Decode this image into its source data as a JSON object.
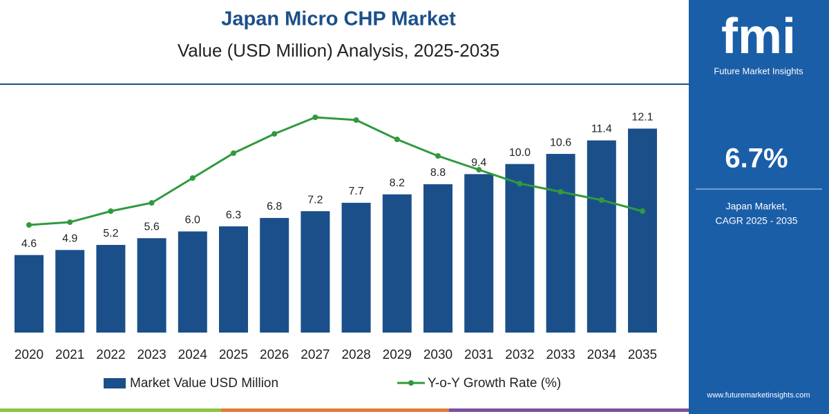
{
  "chart_data": {
    "type": "bar",
    "title": "Japan Micro CHP Market",
    "subtitle": "Value (USD Million) Analysis, 2025-2035",
    "categories": [
      "2020",
      "2021",
      "2022",
      "2023",
      "2024",
      "2025",
      "2026",
      "2027",
      "2028",
      "2029",
      "2030",
      "2031",
      "2032",
      "2033",
      "2034",
      "2035"
    ],
    "series": [
      {
        "name": "Market Value USD Million",
        "type": "bar",
        "color": "#1b4f8a",
        "values": [
          4.6,
          4.9,
          5.2,
          5.6,
          6.0,
          6.3,
          6.8,
          7.2,
          7.7,
          8.2,
          8.8,
          9.4,
          10.0,
          10.6,
          11.4,
          12.1
        ],
        "value_labels": [
          "4.6",
          "4.9",
          "5.2",
          "5.6",
          "6.0",
          "6.3",
          "6.8",
          "7.2",
          "7.7",
          "8.2",
          "8.8",
          "9.4",
          "10.0",
          "10.6",
          "11.4",
          "12.1"
        ]
      },
      {
        "name": "Y-o-Y Growth Rate (%)",
        "type": "line",
        "axis": "y2",
        "color": "#2f9a3c",
        "values": [
          3.9,
          4.0,
          4.4,
          4.7,
          5.6,
          6.5,
          7.2,
          7.8,
          7.7,
          7.0,
          6.4,
          5.9,
          5.4,
          5.1,
          4.8,
          4.4
        ]
      }
    ],
    "ylim": [
      0,
      15.8
    ],
    "y2lim": [
      0,
      9.65
    ]
  },
  "panel": {
    "logo": "fmi",
    "brand": "Future Market Insights",
    "cagr": "6.7%",
    "caption": [
      "Japan Market,",
      "CAGR 2025 - 2035"
    ],
    "website": "www.futuremarketinsights.com"
  }
}
